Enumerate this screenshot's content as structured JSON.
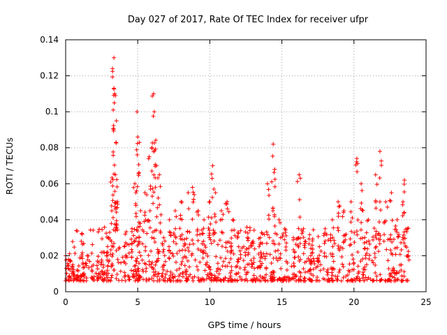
{
  "chart_data": {
    "type": "scatter",
    "title": "Day 027 of 2017, Rate Of TEC Index for receiver ufpr",
    "xlabel": "GPS time / hours",
    "ylabel": "ROTI / TECUs",
    "xlim": [
      0,
      25
    ],
    "ylim": [
      0,
      0.14
    ],
    "xticks": [
      0,
      5,
      10,
      15,
      20,
      25
    ],
    "xtick_labels": [
      "0",
      "5",
      "10",
      "15",
      "20",
      "25"
    ],
    "yticks": [
      0,
      0.02,
      0.04,
      0.06,
      0.08,
      0.1,
      0.12,
      0.14
    ],
    "ytick_labels": [
      "0",
      "0.02",
      "0.04",
      "0.06",
      "0.08",
      "0.1",
      "0.12",
      "0.14"
    ],
    "grid": true,
    "marker": "plus",
    "color": "#ff0000",
    "series": [
      {
        "name": "ROTI",
        "points": [
          [
            0.2,
            0.018
          ],
          [
            0.5,
            0.015
          ],
          [
            0.8,
            0.012
          ],
          [
            1.2,
            0.016
          ],
          [
            1.5,
            0.02
          ],
          [
            1.8,
            0.014
          ],
          [
            2.2,
            0.017
          ],
          [
            2.6,
            0.022
          ],
          [
            3.0,
            0.03
          ],
          [
            3.2,
            0.045
          ],
          [
            3.25,
            0.124
          ],
          [
            3.3,
            0.101
          ],
          [
            3.35,
            0.13
          ],
          [
            3.4,
            0.11
          ],
          [
            3.5,
            0.083
          ],
          [
            3.45,
            0.065
          ],
          [
            3.6,
            0.05
          ],
          [
            4.2,
            0.02
          ],
          [
            4.6,
            0.035
          ],
          [
            4.8,
            0.06
          ],
          [
            4.95,
            0.1
          ],
          [
            5.0,
            0.086
          ],
          [
            5.2,
            0.045
          ],
          [
            5.5,
            0.055
          ],
          [
            5.8,
            0.075
          ],
          [
            6.0,
            0.08
          ],
          [
            6.1,
            0.11
          ],
          [
            6.15,
            0.1
          ],
          [
            6.3,
            0.07
          ],
          [
            6.5,
            0.065
          ],
          [
            6.8,
            0.03
          ],
          [
            7.2,
            0.04
          ],
          [
            7.6,
            0.045
          ],
          [
            8.0,
            0.05
          ],
          [
            8.5,
            0.055
          ],
          [
            8.8,
            0.058
          ],
          [
            9.2,
            0.045
          ],
          [
            9.6,
            0.04
          ],
          [
            10.0,
            0.05
          ],
          [
            10.2,
            0.07
          ],
          [
            10.4,
            0.055
          ],
          [
            10.8,
            0.045
          ],
          [
            11.2,
            0.05
          ],
          [
            11.6,
            0.04
          ],
          [
            12.0,
            0.025
          ],
          [
            12.6,
            0.03
          ],
          [
            13.0,
            0.028
          ],
          [
            13.5,
            0.03
          ],
          [
            14.0,
            0.06
          ],
          [
            14.4,
            0.082
          ],
          [
            14.5,
            0.068
          ],
          [
            14.8,
            0.04
          ],
          [
            15.2,
            0.035
          ],
          [
            15.8,
            0.03
          ],
          [
            16.2,
            0.065
          ],
          [
            16.5,
            0.035
          ],
          [
            17.0,
            0.02
          ],
          [
            17.6,
            0.025
          ],
          [
            18.0,
            0.035
          ],
          [
            18.5,
            0.04
          ],
          [
            18.9,
            0.05
          ],
          [
            19.3,
            0.045
          ],
          [
            19.8,
            0.05
          ],
          [
            20.2,
            0.074
          ],
          [
            20.5,
            0.06
          ],
          [
            21.0,
            0.04
          ],
          [
            21.5,
            0.065
          ],
          [
            21.8,
            0.078
          ],
          [
            22.2,
            0.05
          ],
          [
            22.6,
            0.055
          ],
          [
            23.0,
            0.04
          ],
          [
            23.4,
            0.05
          ],
          [
            23.5,
            0.062
          ],
          [
            23.7,
            0.035
          ]
        ]
      }
    ]
  }
}
